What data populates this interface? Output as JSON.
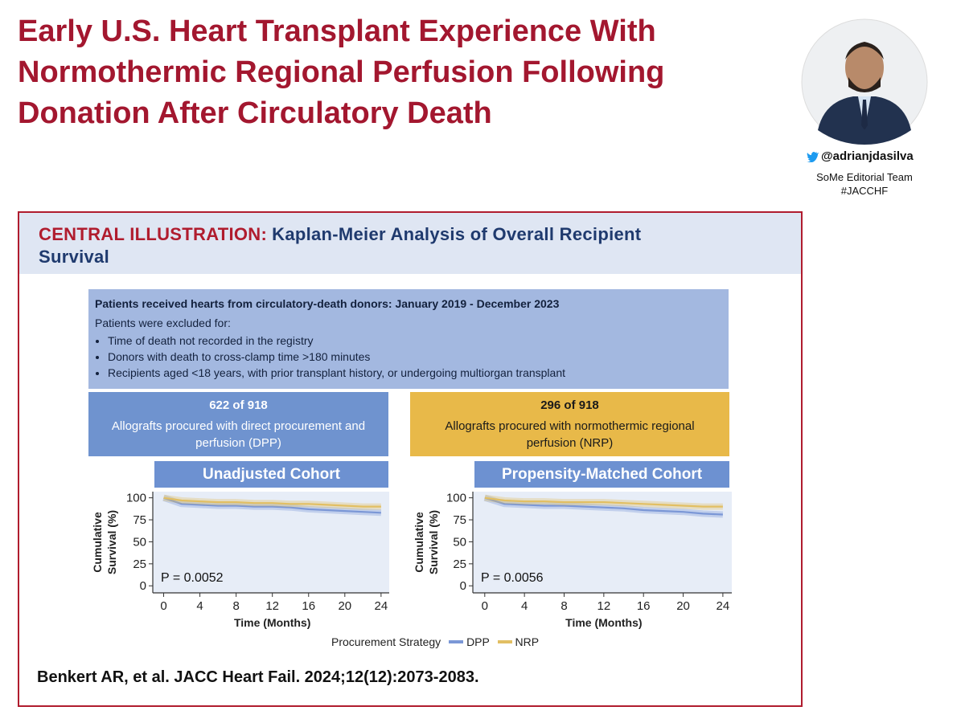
{
  "header": {
    "title": "Early U.S. Heart Transplant Experience With Normothermic Regional Perfusion Following Donation After Circulatory Death",
    "handle": "@adrianjdasilva",
    "team": "SoMe Editorial Team",
    "tag": "#JACCHF"
  },
  "illustration": {
    "label": "CENTRAL ILLUSTRATION:",
    "title": "Kaplan-Meier Analysis of Overall Recipient Survival",
    "criteria_heading": "Patients received hearts from circulatory-death donors: January 2019 - December 2023",
    "exclusion_heading": "Patients were excluded for:",
    "exclusions": [
      "Time of death not recorded in the registry",
      "Donors with death to cross-clamp time >180 minutes",
      "Recipients aged <18 years, with prior transplant history, or undergoing multiorgan transplant"
    ],
    "groups": [
      {
        "count": "622 of 918",
        "description": "Allografts procured with direct procurement and perfusion (DPP)"
      },
      {
        "count": "296 of 918",
        "description": "Allografts procured with normothermic regional perfusion (NRP)"
      }
    ],
    "legend_title": "Procurement Strategy",
    "citation": "Benkert AR, et al. JACC Heart Fail. 2024;12(12):2073-2083."
  },
  "chart_data": [
    {
      "type": "line",
      "title": "Unadjusted Cohort",
      "x_label": "Time (Months)",
      "y_label": [
        "Cumulative",
        "Survival (%)"
      ],
      "annotation": "P = 0.0052",
      "x": [
        0,
        2,
        4,
        6,
        8,
        10,
        12,
        14,
        16,
        18,
        20,
        22,
        24
      ],
      "series": [
        {
          "name": "DPP",
          "color": "#7b97d6",
          "values": [
            100,
            93,
            92,
            91,
            91,
            90,
            90,
            89,
            87,
            86,
            85,
            84,
            83
          ]
        },
        {
          "name": "NRP",
          "color": "#e2bf63",
          "values": [
            100,
            97,
            96,
            95,
            95,
            94,
            94,
            93,
            93,
            92,
            91,
            90,
            90
          ]
        }
      ],
      "xlim": [
        -1.2,
        24.9
      ],
      "ylim": [
        -8,
        107
      ],
      "xticks": [
        0,
        4,
        8,
        12,
        16,
        20,
        24
      ],
      "yticks": [
        0,
        25,
        50,
        75,
        100
      ]
    },
    {
      "type": "line",
      "title": "Propensity-Matched Cohort",
      "x_label": "Time (Months)",
      "y_label": [
        "Cumulative",
        "Survival (%)"
      ],
      "annotation": "P = 0.0056",
      "x": [
        0,
        2,
        4,
        6,
        8,
        10,
        12,
        14,
        16,
        18,
        20,
        22,
        24
      ],
      "series": [
        {
          "name": "DPP",
          "color": "#7b97d6",
          "values": [
            100,
            93,
            92,
            91,
            91,
            90,
            89,
            88,
            86,
            85,
            84,
            82,
            81
          ]
        },
        {
          "name": "NRP",
          "color": "#e2bf63",
          "values": [
            100,
            97,
            96,
            96,
            95,
            95,
            95,
            94,
            93,
            92,
            91,
            90,
            90
          ]
        }
      ],
      "xlim": [
        -1.2,
        24.9
      ],
      "ylim": [
        -8,
        107
      ],
      "xticks": [
        0,
        4,
        8,
        12,
        16,
        20,
        24
      ],
      "yticks": [
        0,
        25,
        50,
        75,
        100
      ]
    }
  ]
}
